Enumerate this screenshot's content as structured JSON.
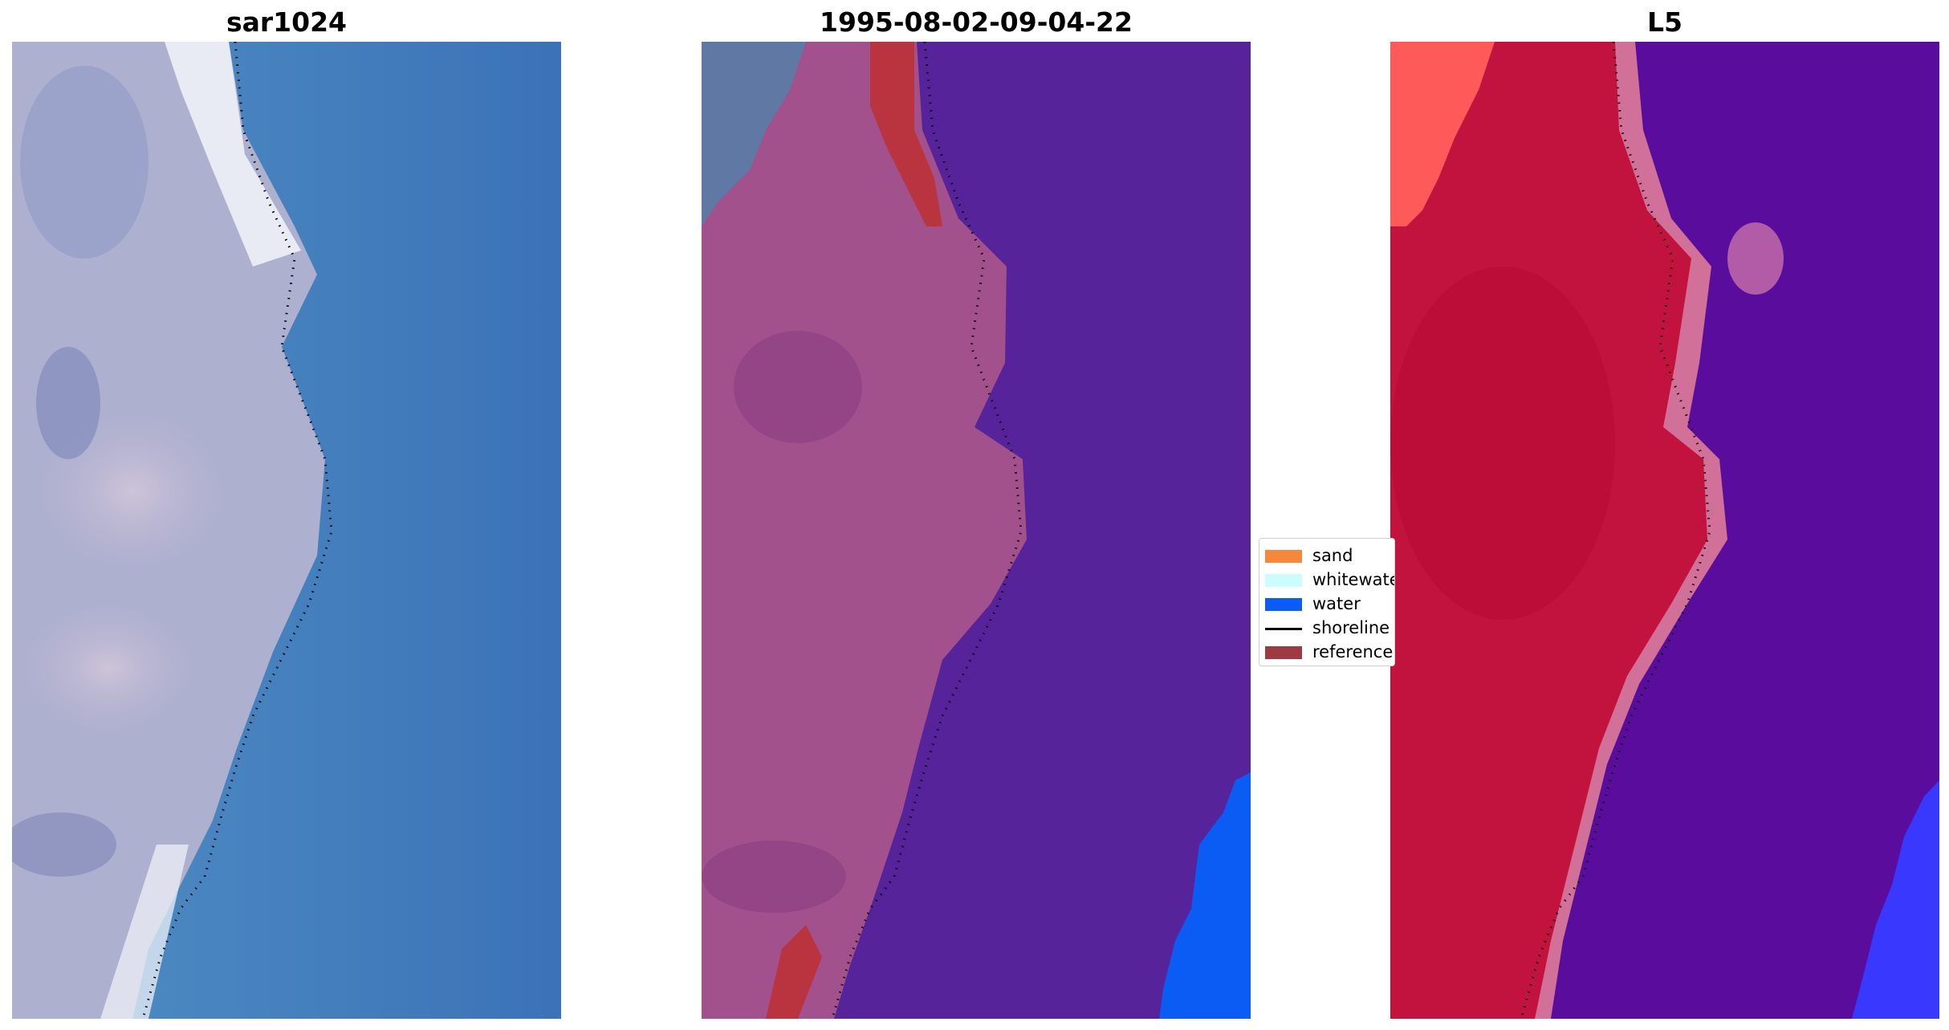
{
  "panels": [
    {
      "title": "sar1024"
    },
    {
      "title": "1995-08-02-09-04-22"
    },
    {
      "title": "L5"
    }
  ],
  "legend": {
    "items": [
      {
        "label": "sand",
        "color": "#f5883a",
        "kind": "patch"
      },
      {
        "label": "whitewater",
        "color": "#ccfdfc",
        "kind": "patch"
      },
      {
        "label": "water",
        "color": "#0a5cf5",
        "kind": "patch"
      },
      {
        "label": "shoreline",
        "color": "#000000",
        "kind": "line"
      },
      {
        "label": "reference",
        "color": "#9e3b42",
        "kind": "patch"
      }
    ]
  },
  "colors": {
    "panel1_land": "#b6b4d2",
    "panel1_foam": "#f2f4f8",
    "panel1_sea": "#3f7bc0",
    "panel2_land": "#a2518c",
    "panel2_sea": "#56239a",
    "panel2_reference": "#b9343f",
    "panel2_sand_corner": "#5f78a4",
    "panel3_land": "#c2123e",
    "panel3_edge": "#d17099",
    "panel3_sea": "#5a0c9c",
    "panel3_corner": "#ff5a5a",
    "water": "#0a5cf5"
  }
}
